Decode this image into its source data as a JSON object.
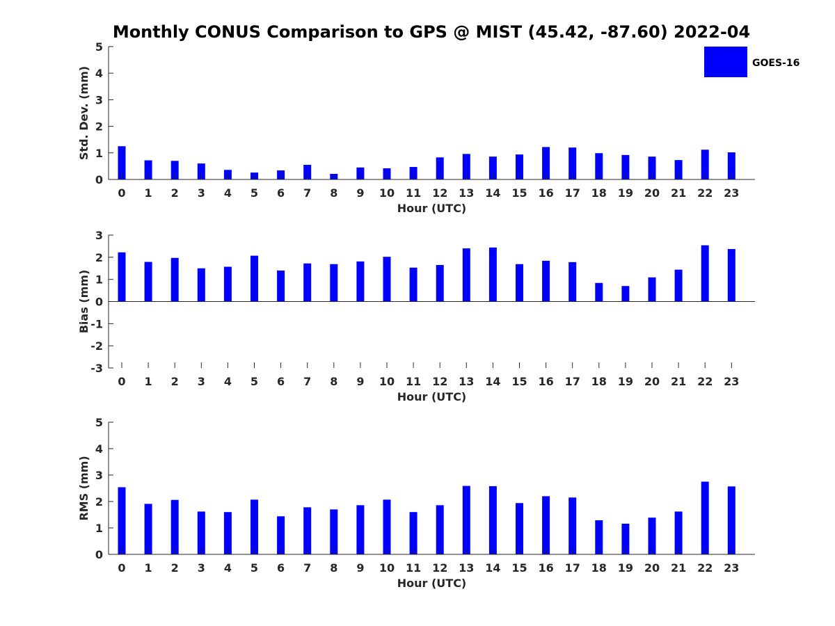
{
  "figure": {
    "title": "Monthly CONUS Comparison to GPS @ MIST (45.42, -87.60) 2022-04",
    "legend": {
      "label": "GOES-16",
      "color": "#0000ff",
      "position": "top-right"
    }
  },
  "chart_data": [
    {
      "type": "bar",
      "xlabel": "Hour (UTC)",
      "ylabel": "Std. Dev. (mm)",
      "ylim": [
        0,
        5
      ],
      "yticks": [
        0,
        1,
        2,
        3,
        4,
        5
      ],
      "categories": [
        "0",
        "1",
        "2",
        "3",
        "4",
        "5",
        "6",
        "7",
        "8",
        "9",
        "10",
        "11",
        "12",
        "13",
        "14",
        "15",
        "16",
        "17",
        "18",
        "19",
        "20",
        "21",
        "22",
        "23"
      ],
      "series": [
        {
          "name": "GOES-16",
          "color": "#0000ff",
          "values": [
            1.25,
            0.72,
            0.7,
            0.6,
            0.36,
            0.26,
            0.34,
            0.55,
            0.21,
            0.45,
            0.42,
            0.47,
            0.83,
            0.96,
            0.86,
            0.94,
            1.22,
            1.2,
            0.99,
            0.92,
            0.86,
            0.73,
            1.12,
            1.02
          ]
        }
      ],
      "grid": false
    },
    {
      "type": "bar",
      "xlabel": "Hour (UTC)",
      "ylabel": "Bias (mm)",
      "ylim": [
        -3,
        3
      ],
      "yticks": [
        -3,
        -2,
        -1,
        0,
        1,
        2,
        3
      ],
      "categories": [
        "0",
        "1",
        "2",
        "3",
        "4",
        "5",
        "6",
        "7",
        "8",
        "9",
        "10",
        "11",
        "12",
        "13",
        "14",
        "15",
        "16",
        "17",
        "18",
        "19",
        "20",
        "21",
        "22",
        "23"
      ],
      "series": [
        {
          "name": "GOES-16",
          "color": "#0000ff",
          "values": [
            2.22,
            1.79,
            1.97,
            1.5,
            1.57,
            2.07,
            1.4,
            1.72,
            1.69,
            1.81,
            2.02,
            1.53,
            1.65,
            2.4,
            2.44,
            1.69,
            1.84,
            1.78,
            0.84,
            0.7,
            1.09,
            1.44,
            2.54,
            2.37
          ]
        }
      ],
      "grid": false
    },
    {
      "type": "bar",
      "xlabel": "Hour (UTC)",
      "ylabel": "RMS (mm)",
      "ylim": [
        0,
        5
      ],
      "yticks": [
        0,
        1,
        2,
        3,
        4,
        5
      ],
      "categories": [
        "0",
        "1",
        "2",
        "3",
        "4",
        "5",
        "6",
        "7",
        "8",
        "9",
        "10",
        "11",
        "12",
        "13",
        "14",
        "15",
        "16",
        "17",
        "18",
        "19",
        "20",
        "21",
        "22",
        "23"
      ],
      "series": [
        {
          "name": "GOES-16",
          "color": "#0000ff",
          "values": [
            2.54,
            1.91,
            2.06,
            1.62,
            1.6,
            2.07,
            1.44,
            1.78,
            1.7,
            1.86,
            2.07,
            1.6,
            1.86,
            2.59,
            2.58,
            1.94,
            2.2,
            2.15,
            1.29,
            1.16,
            1.39,
            1.62,
            2.75,
            2.57
          ]
        }
      ],
      "grid": false
    }
  ]
}
